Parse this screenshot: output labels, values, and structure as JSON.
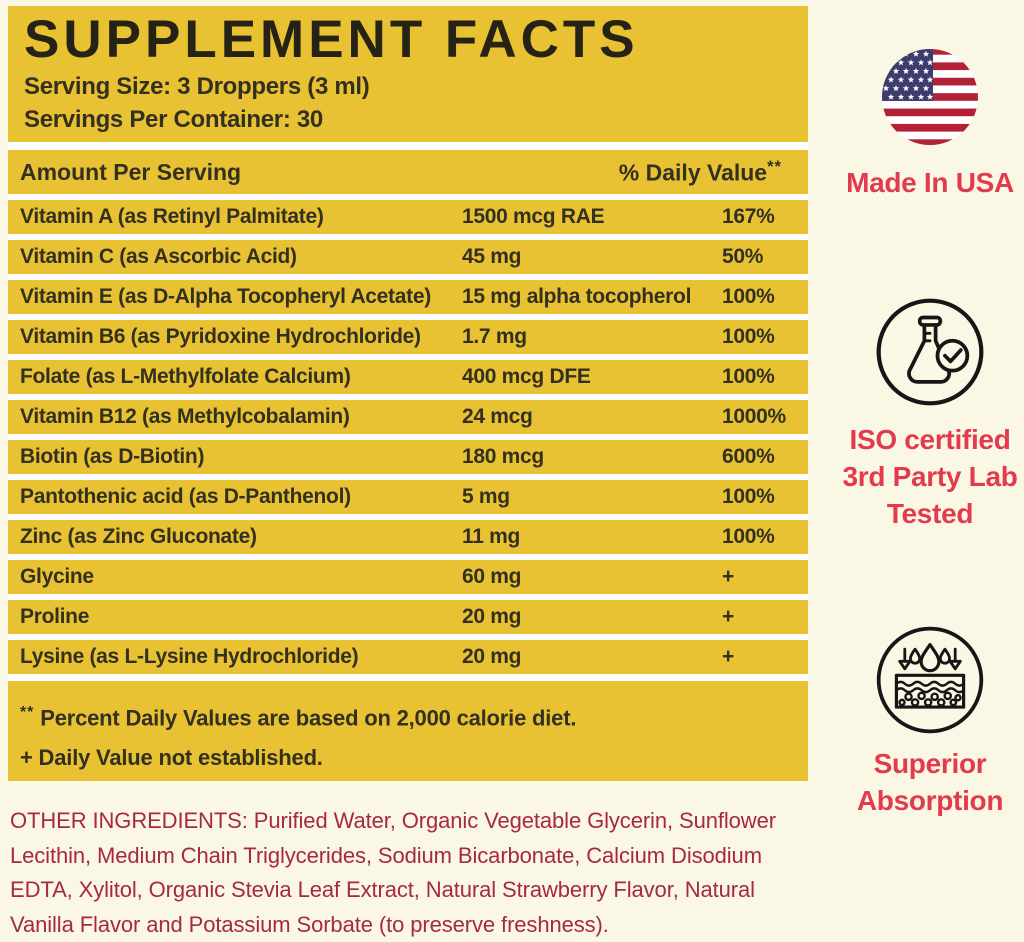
{
  "label": {
    "title": "SUPPLEMENT FACTS",
    "serving_size": "Serving Size: 3 Droppers (3 ml)",
    "servings_per_container": "Servings Per Container: 30",
    "columns": {
      "amount_header": "Amount Per Serving",
      "dv_header": "% Daily Value",
      "dv_header_sup": "**"
    },
    "rows": [
      {
        "name": "Vitamin A (as Retinyl Palmitate)",
        "amount": "1500 mcg RAE",
        "dv": "167%"
      },
      {
        "name": "Vitamin C (as Ascorbic Acid)",
        "amount": "45 mg",
        "dv": "50%"
      },
      {
        "name": "Vitamin E (as D-Alpha Tocopheryl Acetate)",
        "amount": "15 mg alpha tocopherol",
        "dv": "100%"
      },
      {
        "name": "Vitamin B6 (as Pyridoxine Hydrochloride)",
        "amount": "1.7 mg",
        "dv": "100%"
      },
      {
        "name": "Folate (as L-Methylfolate Calcium)",
        "amount": "400 mcg DFE",
        "dv": "100%"
      },
      {
        "name": "Vitamin B12 (as Methylcobalamin)",
        "amount": "24 mcg",
        "dv": "1000%"
      },
      {
        "name": "Biotin (as D-Biotin)",
        "amount": "180 mcg",
        "dv": "600%"
      },
      {
        "name": "Pantothenic acid (as D-Panthenol)",
        "amount": "5 mg",
        "dv": "100%"
      },
      {
        "name": "Zinc (as Zinc Gluconate)",
        "amount": "11 mg",
        "dv": "100%"
      },
      {
        "name": "Glycine",
        "amount": "60 mg",
        "dv": "+"
      },
      {
        "name": "Proline",
        "amount": "20 mg",
        "dv": "+"
      },
      {
        "name": "Lysine (as L-Lysine Hydrochloride)",
        "amount": "20 mg",
        "dv": "+"
      }
    ],
    "footnotes": {
      "line1_sup": "**",
      "line1": " Percent Daily Values are based on 2,000 calorie diet.",
      "line2": "+ Daily Value not established."
    }
  },
  "other_ingredients": "OTHER INGREDIENTS: Purified Water, Organic Vegetable Glycerin, Sunflower\nLecithin, Medium Chain Triglycerides, Sodium Bicarbonate, Calcium Disodium\nEDTA, Xylitol, Organic Stevia Leaf Extract, Natural Strawberry Flavor, Natural\nVanilla Flavor and Potassium Sorbate (to preserve freshness).",
  "badges": [
    {
      "icon": "usa-flag-icon",
      "label": "Made In USA"
    },
    {
      "icon": "lab-flask-check-icon",
      "label": "ISO certified\n3rd Party Lab\nTested"
    },
    {
      "icon": "skin-absorption-icon",
      "label": "Superior\nAbsorption"
    }
  ],
  "colors": {
    "panel_yellow": "#E8C232",
    "page_cream": "#FBF7E5",
    "badge_red": "#E23B4D",
    "ingredients_red": "#A52A3D",
    "flag_red": "#B22234",
    "flag_blue": "#3D3C6E"
  }
}
